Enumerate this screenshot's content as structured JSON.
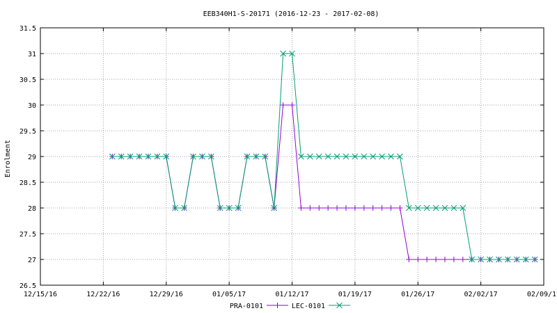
{
  "chart_data": {
    "type": "line",
    "title": "EEB340H1-S-20171 (2016-12-23 - 2017-02-08)",
    "xlabel": "",
    "ylabel": "Enrolment",
    "xlim": [
      "2016-12-15",
      "2017-02-09"
    ],
    "ylim": [
      26.5,
      31.5
    ],
    "x_ticks": [
      "12/15/16",
      "12/22/16",
      "12/29/16",
      "01/05/17",
      "01/12/17",
      "01/19/17",
      "01/26/17",
      "02/02/17",
      "02/09/17"
    ],
    "y_ticks": [
      "26.5",
      "27",
      "27.5",
      "28",
      "28.5",
      "29",
      "29.5",
      "30",
      "30.5",
      "31",
      "31.5"
    ],
    "grid": true,
    "legend_position": "bottom-center",
    "series": [
      {
        "name": "PRA-0101",
        "color": "#9400d3",
        "marker": "plus",
        "points": [
          [
            "2016-12-23",
            29
          ],
          [
            "2016-12-24",
            29
          ],
          [
            "2016-12-25",
            29
          ],
          [
            "2016-12-26",
            29
          ],
          [
            "2016-12-27",
            29
          ],
          [
            "2016-12-28",
            29
          ],
          [
            "2016-12-29",
            29
          ],
          [
            "2016-12-30",
            28
          ],
          [
            "2016-12-31",
            28
          ],
          [
            "2017-01-01",
            29
          ],
          [
            "2017-01-02",
            29
          ],
          [
            "2017-01-03",
            29
          ],
          [
            "2017-01-04",
            28
          ],
          [
            "2017-01-05",
            28
          ],
          [
            "2017-01-06",
            28
          ],
          [
            "2017-01-07",
            29
          ],
          [
            "2017-01-08",
            29
          ],
          [
            "2017-01-09",
            29
          ],
          [
            "2017-01-10",
            28
          ],
          [
            "2017-01-11",
            30
          ],
          [
            "2017-01-12",
            30
          ],
          [
            "2017-01-13",
            28
          ],
          [
            "2017-01-14",
            28
          ],
          [
            "2017-01-15",
            28
          ],
          [
            "2017-01-16",
            28
          ],
          [
            "2017-01-17",
            28
          ],
          [
            "2017-01-18",
            28
          ],
          [
            "2017-01-19",
            28
          ],
          [
            "2017-01-20",
            28
          ],
          [
            "2017-01-21",
            28
          ],
          [
            "2017-01-22",
            28
          ],
          [
            "2017-01-23",
            28
          ],
          [
            "2017-01-24",
            28
          ],
          [
            "2017-01-25",
            27
          ],
          [
            "2017-01-26",
            27
          ],
          [
            "2017-01-27",
            27
          ],
          [
            "2017-01-28",
            27
          ],
          [
            "2017-01-29",
            27
          ],
          [
            "2017-01-30",
            27
          ],
          [
            "2017-01-31",
            27
          ],
          [
            "2017-02-01",
            27
          ],
          [
            "2017-02-02",
            27
          ],
          [
            "2017-02-03",
            27
          ],
          [
            "2017-02-04",
            27
          ],
          [
            "2017-02-05",
            27
          ],
          [
            "2017-02-06",
            27
          ],
          [
            "2017-02-07",
            27
          ],
          [
            "2017-02-08",
            27
          ]
        ]
      },
      {
        "name": "LEC-0101",
        "color": "#009e73",
        "marker": "cross",
        "points": [
          [
            "2016-12-23",
            29
          ],
          [
            "2016-12-24",
            29
          ],
          [
            "2016-12-25",
            29
          ],
          [
            "2016-12-26",
            29
          ],
          [
            "2016-12-27",
            29
          ],
          [
            "2016-12-28",
            29
          ],
          [
            "2016-12-29",
            29
          ],
          [
            "2016-12-30",
            28
          ],
          [
            "2016-12-31",
            28
          ],
          [
            "2017-01-01",
            29
          ],
          [
            "2017-01-02",
            29
          ],
          [
            "2017-01-03",
            29
          ],
          [
            "2017-01-04",
            28
          ],
          [
            "2017-01-05",
            28
          ],
          [
            "2017-01-06",
            28
          ],
          [
            "2017-01-07",
            29
          ],
          [
            "2017-01-08",
            29
          ],
          [
            "2017-01-09",
            29
          ],
          [
            "2017-01-10",
            28
          ],
          [
            "2017-01-11",
            31
          ],
          [
            "2017-01-12",
            31
          ],
          [
            "2017-01-13",
            29
          ],
          [
            "2017-01-14",
            29
          ],
          [
            "2017-01-15",
            29
          ],
          [
            "2017-01-16",
            29
          ],
          [
            "2017-01-17",
            29
          ],
          [
            "2017-01-18",
            29
          ],
          [
            "2017-01-19",
            29
          ],
          [
            "2017-01-20",
            29
          ],
          [
            "2017-01-21",
            29
          ],
          [
            "2017-01-22",
            29
          ],
          [
            "2017-01-23",
            29
          ],
          [
            "2017-01-24",
            29
          ],
          [
            "2017-01-25",
            28
          ],
          [
            "2017-01-26",
            28
          ],
          [
            "2017-01-27",
            28
          ],
          [
            "2017-01-28",
            28
          ],
          [
            "2017-01-29",
            28
          ],
          [
            "2017-01-30",
            28
          ],
          [
            "2017-01-31",
            28
          ],
          [
            "2017-02-01",
            27
          ],
          [
            "2017-02-02",
            27
          ],
          [
            "2017-02-03",
            27
          ],
          [
            "2017-02-04",
            27
          ],
          [
            "2017-02-05",
            27
          ],
          [
            "2017-02-06",
            27
          ],
          [
            "2017-02-07",
            27
          ],
          [
            "2017-02-08",
            27
          ]
        ]
      }
    ]
  }
}
